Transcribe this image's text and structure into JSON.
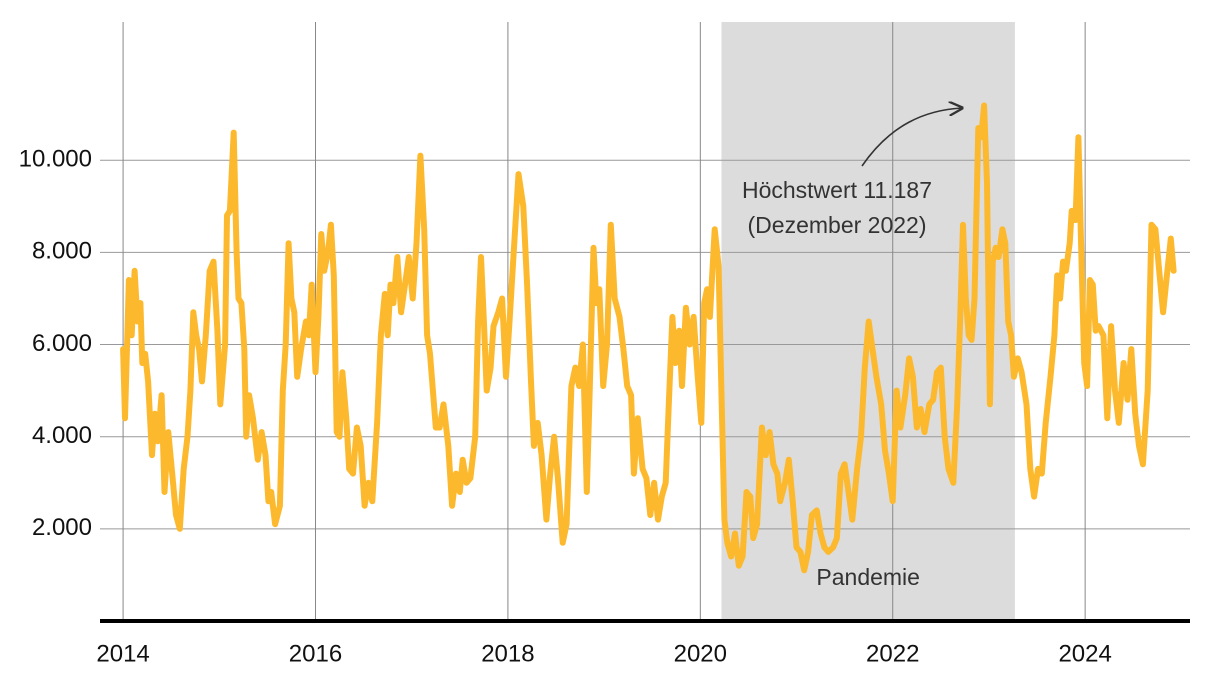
{
  "chart_data": {
    "type": "line",
    "x": [
      2014.0,
      2014.02,
      2014.06,
      2014.09,
      2014.12,
      2014.15,
      2014.18,
      2014.2,
      2014.23,
      2014.26,
      2014.3,
      2014.33,
      2014.36,
      2014.4,
      2014.43,
      2014.47,
      2014.51,
      2014.55,
      2014.59,
      2014.63,
      2014.67,
      2014.7,
      2014.73,
      2014.76,
      2014.79,
      2014.82,
      2014.86,
      2014.9,
      2014.94,
      2014.98,
      2015.01,
      2015.06,
      2015.08,
      2015.11,
      2015.15,
      2015.18,
      2015.2,
      2015.23,
      2015.26,
      2015.28,
      2015.31,
      2015.35,
      2015.4,
      2015.44,
      2015.48,
      2015.51,
      2015.54,
      2015.58,
      2015.63,
      2015.66,
      2015.69,
      2015.72,
      2015.75,
      2015.78,
      2015.81,
      2015.85,
      2015.9,
      2015.93,
      2015.96,
      2016.0,
      2016.03,
      2016.06,
      2016.09,
      2016.13,
      2016.16,
      2016.19,
      2016.22,
      2016.25,
      2016.28,
      2016.32,
      2016.35,
      2016.39,
      2016.43,
      2016.47,
      2016.51,
      2016.55,
      2016.59,
      2016.64,
      2016.68,
      2016.72,
      2016.75,
      2016.78,
      2016.81,
      2016.85,
      2016.89,
      2016.93,
      2016.97,
      2017.01,
      2017.05,
      2017.09,
      2017.13,
      2017.16,
      2017.19,
      2017.22,
      2017.25,
      2017.29,
      2017.33,
      2017.38,
      2017.42,
      2017.46,
      2017.5,
      2017.53,
      2017.57,
      2017.61,
      2017.66,
      2017.69,
      2017.72,
      2017.75,
      2017.78,
      2017.82,
      2017.85,
      2017.9,
      2017.94,
      2017.98,
      2018.02,
      2018.06,
      2018.11,
      2018.16,
      2018.2,
      2018.24,
      2018.27,
      2018.31,
      2018.35,
      2018.4,
      2018.44,
      2018.48,
      2018.52,
      2018.57,
      2018.61,
      2018.66,
      2018.7,
      2018.74,
      2018.78,
      2018.82,
      2018.85,
      2018.89,
      2018.92,
      2018.95,
      2018.99,
      2019.03,
      2019.07,
      2019.11,
      2019.16,
      2019.2,
      2019.24,
      2019.28,
      2019.31,
      2019.35,
      2019.4,
      2019.44,
      2019.48,
      2019.52,
      2019.56,
      2019.6,
      2019.64,
      2019.67,
      2019.71,
      2019.74,
      2019.78,
      2019.81,
      2019.85,
      2019.89,
      2019.93,
      2019.97,
      2020.01,
      2020.04,
      2020.07,
      2020.1,
      2020.15,
      2020.19,
      2020.22,
      2020.25,
      2020.28,
      2020.32,
      2020.36,
      2020.4,
      2020.44,
      2020.48,
      2020.52,
      2020.55,
      2020.59,
      2020.64,
      2020.68,
      2020.72,
      2020.76,
      2020.8,
      2020.83,
      2020.88,
      2020.92,
      2020.96,
      2021.0,
      2021.04,
      2021.08,
      2021.12,
      2021.16,
      2021.21,
      2021.25,
      2021.29,
      2021.33,
      2021.38,
      2021.42,
      2021.46,
      2021.5,
      2021.54,
      2021.58,
      2021.63,
      2021.67,
      2021.71,
      2021.75,
      2021.79,
      2021.83,
      2021.88,
      2021.92,
      2021.96,
      2022.0,
      2022.04,
      2022.08,
      2022.13,
      2022.17,
      2022.21,
      2022.25,
      2022.29,
      2022.33,
      2022.38,
      2022.42,
      2022.46,
      2022.5,
      2022.54,
      2022.58,
      2022.63,
      2022.67,
      2022.7,
      2022.73,
      2022.76,
      2022.79,
      2022.82,
      2022.85,
      2022.89,
      2022.92,
      2022.95,
      2022.98,
      2023.01,
      2023.04,
      2023.07,
      2023.1,
      2023.14,
      2023.17,
      2023.2,
      2023.23,
      2023.26,
      2023.3,
      2023.34,
      2023.39,
      2023.43,
      2023.47,
      2023.51,
      2023.55,
      2023.59,
      2023.64,
      2023.68,
      2023.71,
      2023.74,
      2023.77,
      2023.8,
      2023.84,
      2023.86,
      2023.9,
      2023.93,
      2023.96,
      2023.99,
      2024.02,
      2024.05,
      2024.08,
      2024.11,
      2024.14,
      2024.19,
      2024.23,
      2024.27,
      2024.31,
      2024.35,
      2024.4,
      2024.44,
      2024.48,
      2024.52,
      2024.56,
      2024.6,
      2024.65,
      2024.69,
      2024.73,
      2024.77,
      2024.81,
      2024.85,
      2024.89,
      2024.92
    ],
    "series": [
      {
        "color": "#fdb92e",
        "values": [
          5900,
          4400,
          7400,
          6200,
          7600,
          6500,
          6900,
          5600,
          5800,
          5200,
          3600,
          4500,
          3900,
          4900,
          2800,
          4100,
          3200,
          2300,
          2000,
          3300,
          4000,
          5000,
          6700,
          6200,
          5900,
          5200,
          6200,
          7600,
          7800,
          6300,
          4700,
          6000,
          8800,
          8900,
          10600,
          8000,
          7000,
          6900,
          5900,
          4000,
          4900,
          4400,
          3500,
          4100,
          3600,
          2600,
          2800,
          2100,
          2500,
          5000,
          6000,
          8200,
          7000,
          6700,
          5300,
          5900,
          6500,
          6200,
          7300,
          5400,
          6600,
          8400,
          7600,
          8000,
          8600,
          7500,
          4100,
          4000,
          5400,
          4400,
          3300,
          3200,
          4200,
          3800,
          2500,
          3000,
          2600,
          4300,
          6200,
          7100,
          6200,
          7300,
          6900,
          7900,
          6700,
          7300,
          7900,
          7000,
          8200,
          10100,
          8500,
          6200,
          5800,
          5000,
          4200,
          4200,
          4700,
          3800,
          2500,
          3200,
          2800,
          3500,
          3000,
          3100,
          4000,
          6500,
          7900,
          6500,
          5000,
          5500,
          6400,
          6700,
          7000,
          5300,
          6600,
          8000,
          9700,
          9000,
          7300,
          5200,
          3800,
          4300,
          3600,
          2200,
          3200,
          4000,
          3100,
          1700,
          2100,
          5100,
          5500,
          5100,
          6000,
          2800,
          5000,
          8100,
          6900,
          7200,
          5100,
          6000,
          8600,
          7000,
          6600,
          5900,
          5100,
          4900,
          3200,
          4400,
          3300,
          3100,
          2300,
          3000,
          2200,
          2700,
          3000,
          4600,
          6600,
          5600,
          6300,
          5100,
          6800,
          6000,
          6600,
          5400,
          4300,
          6900,
          7200,
          6600,
          8500,
          7700,
          4900,
          2200,
          1700,
          1400,
          1900,
          1200,
          1400,
          2800,
          2700,
          1800,
          2100,
          4200,
          3600,
          4100,
          3400,
          3200,
          2600,
          3000,
          3500,
          2600,
          1600,
          1500,
          1100,
          1500,
          2300,
          2400,
          1900,
          1600,
          1500,
          1600,
          1800,
          3200,
          3400,
          2800,
          2200,
          3300,
          4000,
          5500,
          6500,
          5900,
          5300,
          4700,
          3700,
          3200,
          2600,
          5000,
          4200,
          4900,
          5700,
          5300,
          4200,
          4600,
          4100,
          4700,
          4800,
          5400,
          5500,
          4000,
          3300,
          3000,
          4700,
          6500,
          8600,
          7000,
          6200,
          6100,
          7000,
          10700,
          10500,
          11187,
          9500,
          4700,
          7800,
          8100,
          7900,
          8500,
          8200,
          6500,
          6200,
          5300,
          5700,
          5400,
          4700,
          3300,
          2700,
          3300,
          3200,
          4300,
          5300,
          6200,
          7500,
          7000,
          7800,
          7600,
          8200,
          8900,
          8700,
          10500,
          8000,
          5600,
          5100,
          7400,
          7300,
          6300,
          6400,
          6200,
          4400,
          6400,
          5000,
          4300,
          5600,
          4800,
          5900,
          4500,
          3800,
          3400,
          5000,
          8600,
          8500,
          7600,
          6700,
          7500,
          8300,
          7600
        ]
      }
    ],
    "xlim": [
      2013.76,
      2025.09
    ],
    "xticks": [
      2014,
      2016,
      2018,
      2020,
      2022,
      2024
    ],
    "ylim": [
      0,
      13000
    ],
    "yticks": [
      {
        "value": 2000,
        "label": "2.000"
      },
      {
        "value": 4000,
        "label": "4.000"
      },
      {
        "value": 6000,
        "label": "6.000"
      },
      {
        "value": 8000,
        "label": "8.000"
      },
      {
        "value": 10000,
        "label": "10.000"
      }
    ],
    "grid": true,
    "shade": {
      "x": [
        2020.22,
        2023.27
      ],
      "label": "Pandemie"
    },
    "annotation": [
      "Höchstwert 11.187",
      "(Dezember 2022)"
    ]
  }
}
